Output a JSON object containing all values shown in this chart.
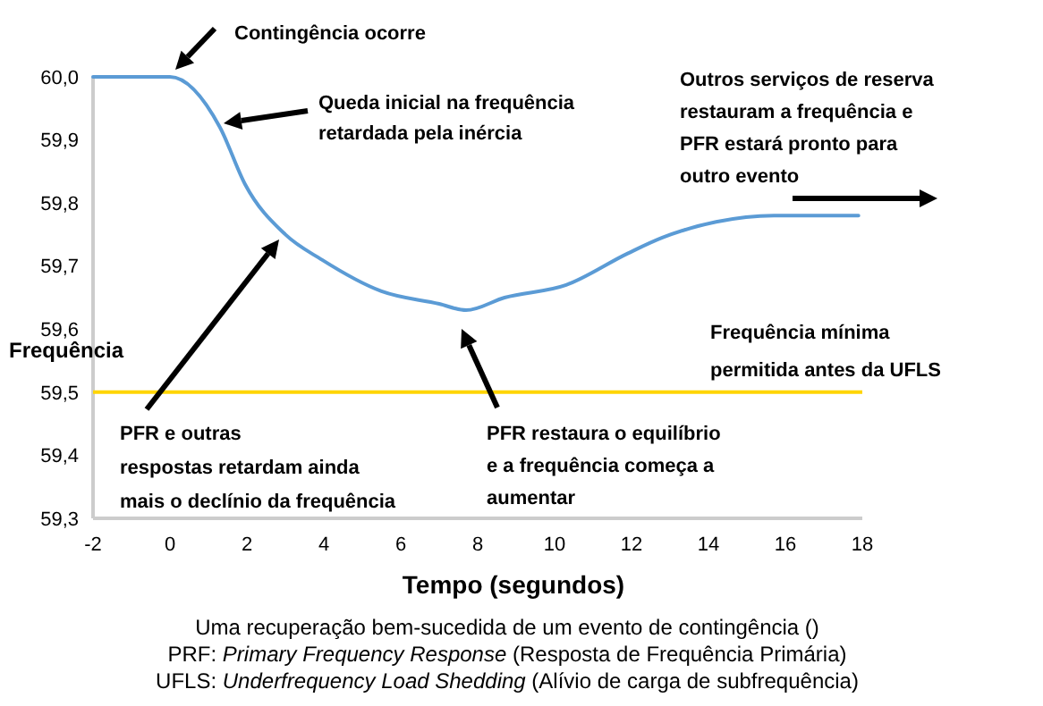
{
  "chart_data": {
    "type": "line",
    "xlabel": "Tempo (segundos)",
    "ylabel": "Frequência",
    "x": [
      -2,
      0,
      1.3,
      1.95,
      3.0,
      3.95,
      5.5,
      7.0,
      7.7,
      8.7,
      10.3,
      11.9,
      12.8,
      14.2,
      15.7,
      17.9
    ],
    "series": [
      {
        "color": "#5b9bd5",
        "values": [
          60.0,
          60.0,
          59.92,
          59.83,
          59.75,
          59.71,
          59.66,
          59.64,
          59.63,
          59.65,
          59.67,
          59.72,
          59.745,
          59.77,
          59.78,
          59.78
        ]
      }
    ],
    "xlim": [
      -2,
      18
    ],
    "xticks": [
      -2,
      0,
      2,
      4,
      6,
      8,
      10,
      12,
      14,
      16,
      18
    ],
    "ylim": [
      59.3,
      60.0
    ],
    "yticks": [
      {
        "value": 59.3,
        "label": "59,3"
      },
      {
        "value": 59.4,
        "label": "59,4"
      },
      {
        "value": 59.5,
        "label": "59,5"
      },
      {
        "value": 59.6,
        "label": "59,6"
      },
      {
        "value": 59.7,
        "label": "59,7"
      },
      {
        "value": 59.8,
        "label": "59,8"
      },
      {
        "value": 59.9,
        "label": "59,9"
      },
      {
        "value": 60.0,
        "label": "60,0"
      }
    ],
    "ref_lines": [
      {
        "axis": "y",
        "value": 59.5,
        "label": "Frequência mínima\npermitida antes da UFLS",
        "color": "#ffd500"
      }
    ],
    "annotations": [
      "Contingência ocorre",
      "Queda inicial na frequência\nretardada pela inércia",
      "PFR e outras\nrespostas retardam ainda\nmais o declínio da frequência",
      "PFR restaura o equilíbrio\ne a frequência começa a\naumentar",
      "Outros serviços de reserva\nrestauram a frequência e\nPFR estará pronto para\noutro evento",
      "Uma recuperação bem-sucedida de um evento de contingência ()",
      "PRF: Primary Frequency Response (Resposta de Frequência Primária)",
      "UFLS: Underfrequency Load Shedding (Alívio de carga de subfrequência)"
    ],
    "grid": false,
    "marker": "none",
    "line_style": "solid"
  }
}
